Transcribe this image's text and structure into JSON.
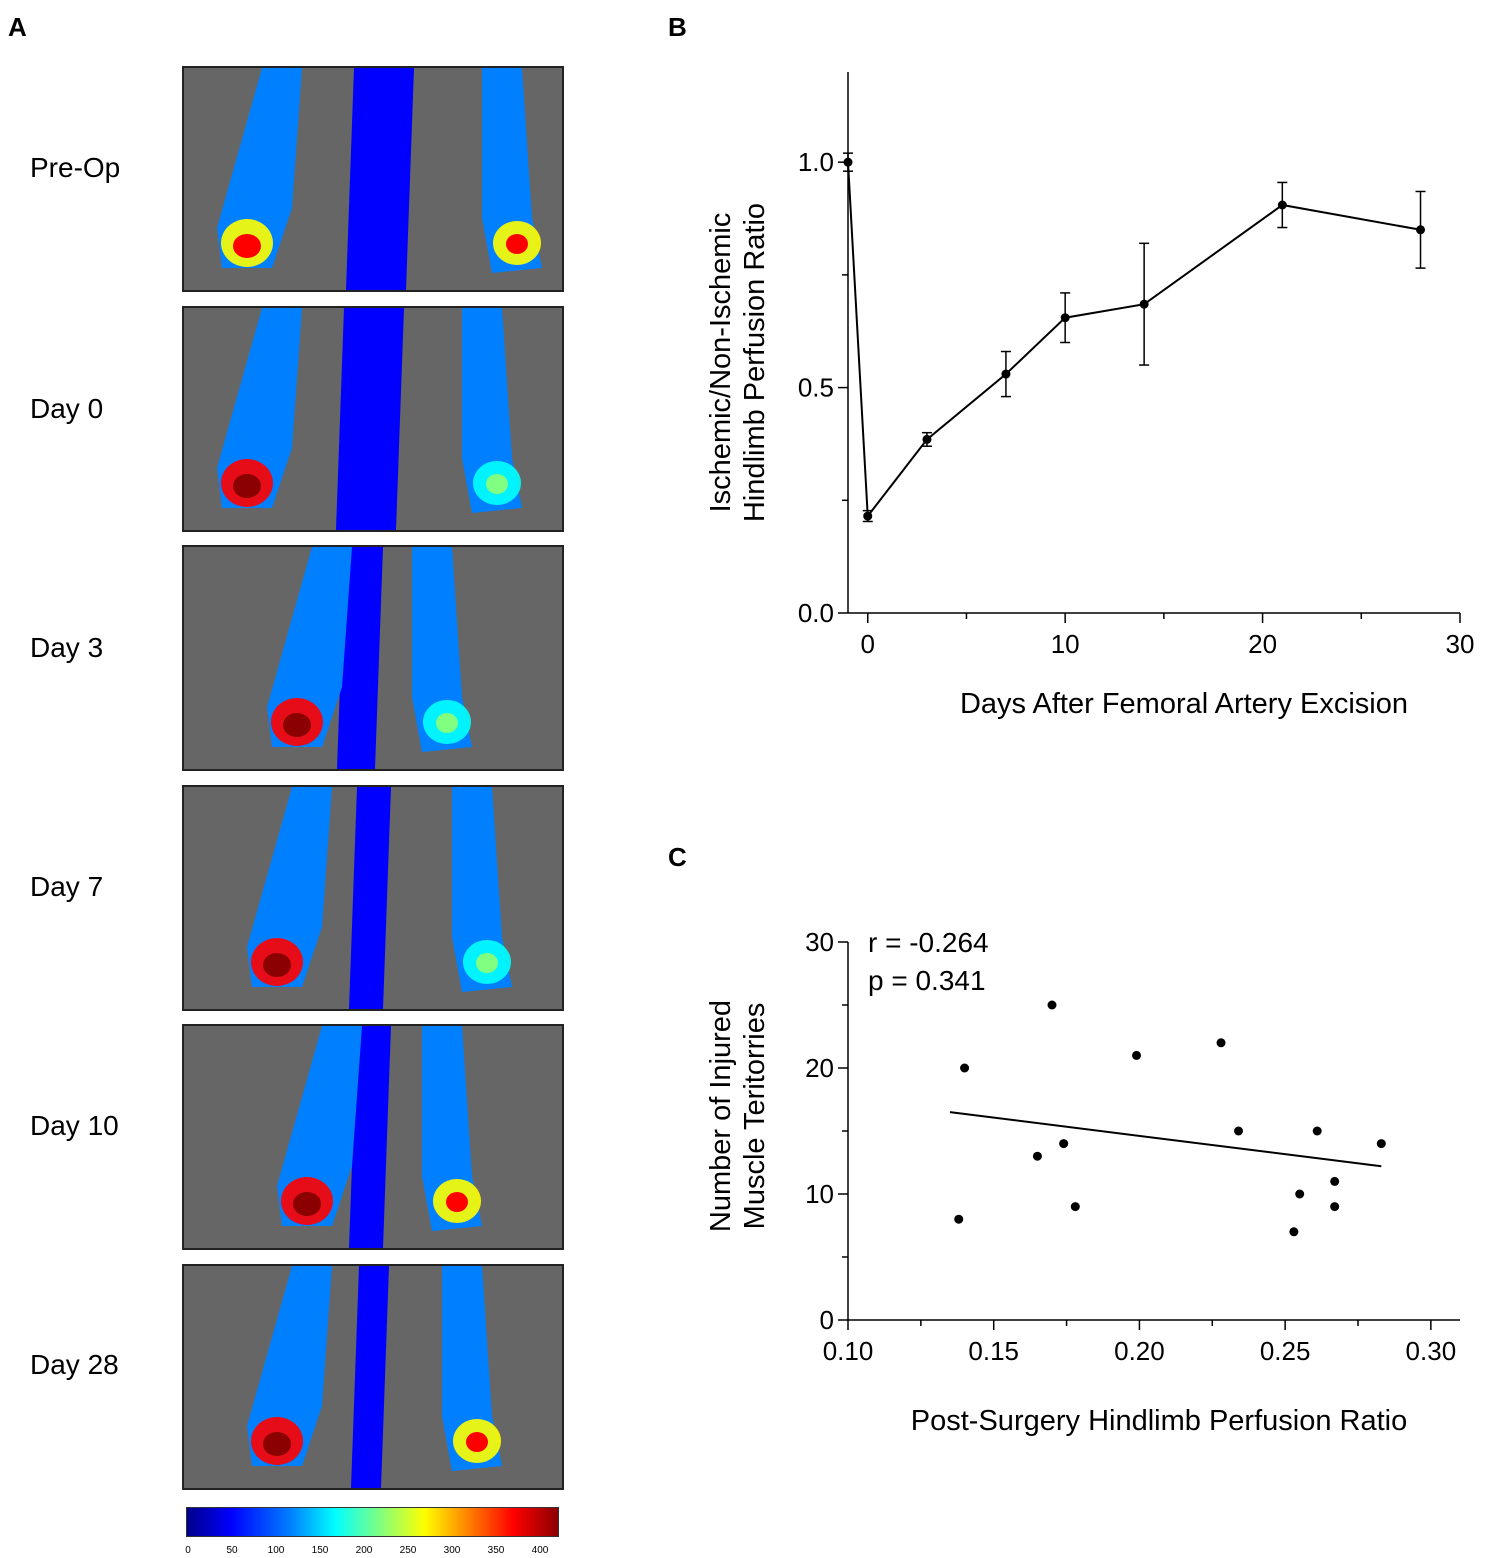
{
  "panels": {
    "a": "A",
    "b": "B",
    "c": "C"
  },
  "rows": [
    {
      "label": "Pre-Op"
    },
    {
      "label": "Day 0"
    },
    {
      "label": "Day 3"
    },
    {
      "label": "Day 7"
    },
    {
      "label": "Day 10"
    },
    {
      "label": "Day 28"
    }
  ],
  "colorbar": {
    "ticks": [
      "0",
      "50",
      "100",
      "150",
      "200",
      "250",
      "300",
      "350",
      "400"
    ],
    "colors": [
      "#00008b",
      "#0000ff",
      "#0080ff",
      "#00ffff",
      "#80ff80",
      "#ffff00",
      "#ff8000",
      "#ff0000",
      "#8b0000"
    ]
  },
  "chart_data": [
    {
      "type": "line",
      "xlabel": "Days After Femoral Artery Excision",
      "ylabel": [
        "Ischemic/Non-Ischemic",
        "Hindlimb Perfusion Ratio"
      ],
      "xlim": [
        -1,
        30
      ],
      "ylim": [
        0,
        1.2
      ],
      "xticks": [
        0,
        10,
        20,
        30
      ],
      "yticks": [
        0.0,
        0.5,
        1.0
      ],
      "ytick_labels": [
        "0.0",
        "0.5",
        "1.0"
      ],
      "x": [
        -1,
        0,
        3,
        7,
        10,
        14,
        21,
        28
      ],
      "y": [
        1.0,
        0.215,
        0.385,
        0.53,
        0.655,
        0.685,
        0.905,
        0.85
      ],
      "err": [
        0.02,
        0.012,
        0.015,
        0.05,
        0.055,
        0.135,
        0.05,
        0.085
      ]
    },
    {
      "type": "scatter",
      "xlabel": "Post-Surgery Hindlimb Perfusion Ratio",
      "ylabel": [
        "Number of Injured",
        "Muscle Teritorries"
      ],
      "xlim": [
        0.1,
        0.31
      ],
      "ylim": [
        0,
        30
      ],
      "xticks": [
        0.1,
        0.15,
        0.2,
        0.25,
        0.3
      ],
      "xtick_labels": [
        "0.10",
        "0.15",
        "0.20",
        "0.25",
        "0.30"
      ],
      "yticks": [
        0,
        10,
        20,
        30
      ],
      "ytick_labels": [
        "0",
        "10",
        "20",
        "30"
      ],
      "annotations": [
        "r = -0.264",
        "p = 0.341"
      ],
      "points": [
        {
          "x": 0.138,
          "y": 8
        },
        {
          "x": 0.14,
          "y": 20
        },
        {
          "x": 0.165,
          "y": 13
        },
        {
          "x": 0.17,
          "y": 25
        },
        {
          "x": 0.174,
          "y": 14
        },
        {
          "x": 0.178,
          "y": 9
        },
        {
          "x": 0.199,
          "y": 21
        },
        {
          "x": 0.228,
          "y": 22
        },
        {
          "x": 0.234,
          "y": 15
        },
        {
          "x": 0.253,
          "y": 7
        },
        {
          "x": 0.255,
          "y": 10
        },
        {
          "x": 0.261,
          "y": 15
        },
        {
          "x": 0.267,
          "y": 11
        },
        {
          "x": 0.267,
          "y": 9
        },
        {
          "x": 0.283,
          "y": 14
        }
      ],
      "fit": {
        "x": [
          0.135,
          0.283
        ],
        "y": [
          16.5,
          12.2
        ]
      }
    }
  ]
}
